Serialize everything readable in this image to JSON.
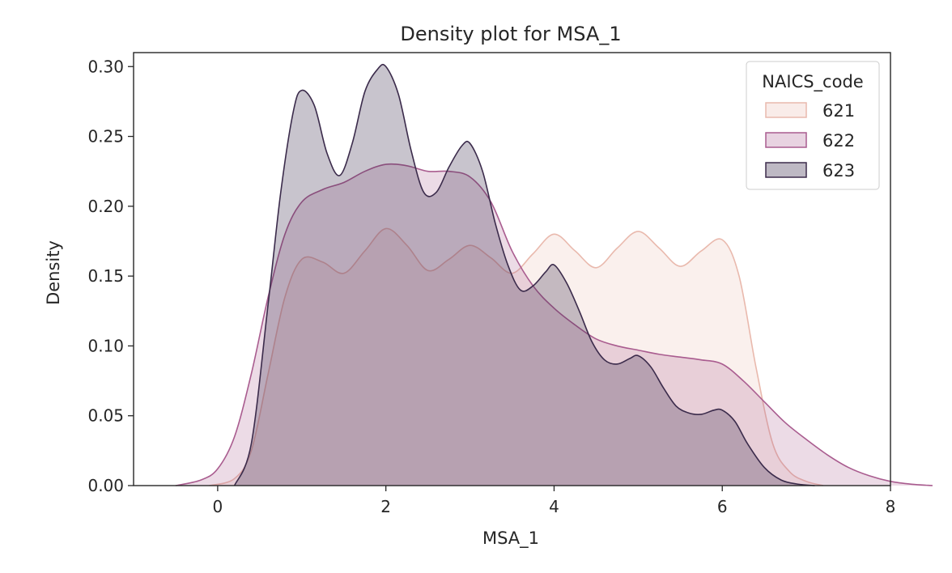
{
  "chart_data": {
    "type": "area",
    "title": "Density plot for MSA_1",
    "xlabel": "MSA_1",
    "ylabel": "Density",
    "xlim": [
      -1.0,
      8.0
    ],
    "ylim": [
      0.0,
      0.31
    ],
    "xticks": [
      0,
      2,
      4,
      6,
      8
    ],
    "yticks": [
      0.0,
      0.05,
      0.1,
      0.15,
      0.2,
      0.25,
      0.3
    ],
    "ytick_labels": [
      "0.00",
      "0.05",
      "0.10",
      "0.15",
      "0.20",
      "0.25",
      "0.30"
    ],
    "grid": false,
    "legend": {
      "title": "NAICS_code",
      "position": "top-right"
    },
    "series": [
      {
        "name": "621",
        "color": "#e9b9ad",
        "fill_opacity": 0.22,
        "x": [
          -0.1,
          0.2,
          0.4,
          0.6,
          0.8,
          1.0,
          1.25,
          1.5,
          1.75,
          2.0,
          2.25,
          2.5,
          2.75,
          3.0,
          3.25,
          3.5,
          3.75,
          4.0,
          4.25,
          4.5,
          4.75,
          5.0,
          5.25,
          5.5,
          5.75,
          6.0,
          6.2,
          6.4,
          6.6,
          6.8,
          7.0,
          7.2
        ],
        "y": [
          0.0,
          0.005,
          0.025,
          0.08,
          0.135,
          0.162,
          0.16,
          0.152,
          0.168,
          0.184,
          0.172,
          0.154,
          0.162,
          0.172,
          0.163,
          0.152,
          0.166,
          0.18,
          0.168,
          0.156,
          0.17,
          0.182,
          0.17,
          0.157,
          0.168,
          0.176,
          0.15,
          0.085,
          0.03,
          0.01,
          0.003,
          0.0
        ]
      },
      {
        "name": "622",
        "color": "#a95c8f",
        "fill_opacity": 0.22,
        "x": [
          -0.5,
          -0.2,
          0.0,
          0.2,
          0.4,
          0.6,
          0.8,
          1.0,
          1.25,
          1.5,
          1.75,
          2.0,
          2.25,
          2.5,
          2.75,
          3.0,
          3.25,
          3.5,
          3.75,
          4.0,
          4.25,
          4.5,
          4.75,
          5.0,
          5.25,
          5.5,
          5.75,
          6.0,
          6.25,
          6.5,
          6.75,
          7.0,
          7.25,
          7.5,
          7.75,
          8.0,
          8.25,
          8.5
        ],
        "y": [
          0.0,
          0.004,
          0.012,
          0.035,
          0.08,
          0.135,
          0.18,
          0.203,
          0.212,
          0.217,
          0.225,
          0.23,
          0.229,
          0.225,
          0.225,
          0.221,
          0.203,
          0.168,
          0.143,
          0.127,
          0.115,
          0.105,
          0.1,
          0.097,
          0.094,
          0.092,
          0.09,
          0.087,
          0.075,
          0.06,
          0.045,
          0.033,
          0.022,
          0.013,
          0.007,
          0.003,
          0.001,
          0.0
        ]
      },
      {
        "name": "623",
        "color": "#3b2b4b",
        "fill_opacity": 0.28,
        "x": [
          0.2,
          0.4,
          0.6,
          0.75,
          0.9,
          1.0,
          1.15,
          1.3,
          1.45,
          1.6,
          1.75,
          1.9,
          2.0,
          2.15,
          2.3,
          2.45,
          2.6,
          2.75,
          2.9,
          3.0,
          3.15,
          3.3,
          3.45,
          3.6,
          3.75,
          3.9,
          4.0,
          4.15,
          4.3,
          4.45,
          4.6,
          4.75,
          4.9,
          5.0,
          5.15,
          5.3,
          5.45,
          5.6,
          5.75,
          5.9,
          6.0,
          6.15,
          6.3,
          6.5,
          6.7,
          6.9,
          7.1
        ],
        "y": [
          0.0,
          0.03,
          0.13,
          0.21,
          0.268,
          0.283,
          0.272,
          0.238,
          0.222,
          0.245,
          0.282,
          0.298,
          0.3,
          0.28,
          0.24,
          0.21,
          0.21,
          0.228,
          0.243,
          0.245,
          0.225,
          0.188,
          0.158,
          0.14,
          0.143,
          0.153,
          0.158,
          0.145,
          0.125,
          0.103,
          0.09,
          0.087,
          0.091,
          0.093,
          0.085,
          0.07,
          0.057,
          0.052,
          0.051,
          0.054,
          0.054,
          0.046,
          0.03,
          0.013,
          0.004,
          0.001,
          0.0
        ]
      }
    ]
  }
}
